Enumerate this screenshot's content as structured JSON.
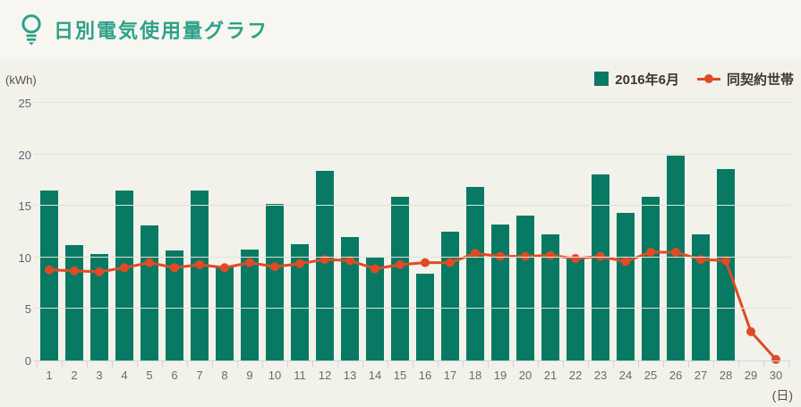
{
  "header": {
    "title": "日別電気使用量グラフ",
    "icon": "lightbulb-icon"
  },
  "legend": {
    "bars_label": "2016年6月",
    "line_label": "同契約世帯"
  },
  "axis": {
    "y_unit": "(kWh)",
    "x_unit": "(日)"
  },
  "colors": {
    "bar": "#087a63",
    "line": "#df4b26",
    "title": "#2da189",
    "background": "#f2f2eb",
    "header_background": "#f7f6f0",
    "gridline": "#e1e1d8",
    "axis": "#ccd7e2"
  },
  "chart_data": {
    "type": "bar",
    "title": "日別電気使用量グラフ",
    "xlabel": "(日)",
    "ylabel": "(kWh)",
    "ylim": [
      0,
      25
    ],
    "yticks": [
      0,
      5,
      10,
      15,
      20,
      25
    ],
    "grid": true,
    "legend_position": "top-right",
    "categories": [
      1,
      2,
      3,
      4,
      5,
      6,
      7,
      8,
      9,
      10,
      11,
      12,
      13,
      14,
      15,
      16,
      17,
      18,
      19,
      20,
      21,
      22,
      23,
      24,
      25,
      26,
      27,
      28,
      29,
      30
    ],
    "series": [
      {
        "name": "2016年6月",
        "type": "bar",
        "color": "#087a63",
        "values": [
          16.5,
          11.2,
          10.3,
          16.5,
          13.1,
          10.7,
          16.5,
          9.0,
          10.8,
          15.2,
          11.3,
          18.4,
          12.0,
          10.0,
          15.9,
          8.4,
          12.5,
          16.8,
          13.2,
          14.1,
          12.2,
          10.0,
          18.1,
          14.3,
          15.9,
          19.9,
          12.2,
          18.6,
          0,
          0
        ]
      },
      {
        "name": "同契約世帯",
        "type": "line",
        "color": "#df4b26",
        "values": [
          8.8,
          8.7,
          8.6,
          9.0,
          9.5,
          9.0,
          9.3,
          9.0,
          9.5,
          9.1,
          9.4,
          9.8,
          9.7,
          8.9,
          9.3,
          9.5,
          9.5,
          10.4,
          10.1,
          10.1,
          10.2,
          9.9,
          10.1,
          9.6,
          10.5,
          10.5,
          9.8,
          9.7,
          2.8,
          0.1
        ]
      }
    ]
  }
}
